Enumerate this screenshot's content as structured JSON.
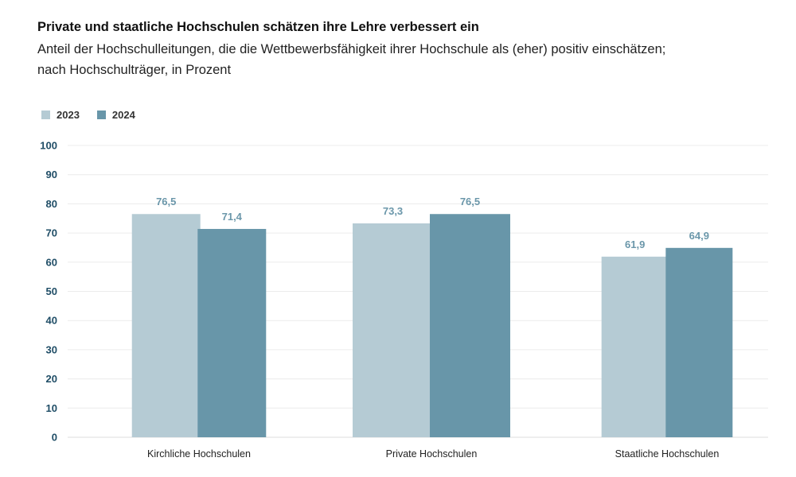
{
  "header": {
    "title": "Private und staatliche Hochschulen schätzen ihre Lehre verbessert ein",
    "subtitle_line1": "Anteil der Hochschulleitungen, die die Wettbewerbsfähigkeit ihrer Hochschule als (eher) positiv einschätzen;",
    "subtitle_line2": "nach Hochschulträger, in Prozent"
  },
  "legend": [
    {
      "label": "2023",
      "color": "#b5cbd4"
    },
    {
      "label": "2024",
      "color": "#6896a9"
    }
  ],
  "chart_data": {
    "type": "bar",
    "title": "Private und staatliche Hochschulen schätzen ihre Lehre verbessert ein",
    "xlabel": "",
    "ylabel": "",
    "ylim": [
      0,
      100
    ],
    "yticks": [
      0,
      10,
      20,
      30,
      40,
      50,
      60,
      70,
      80,
      90,
      100
    ],
    "categories": [
      "Kirchliche Hochschulen",
      "Private Hochschulen",
      "Staatliche Hochschulen"
    ],
    "series": [
      {
        "name": "2023",
        "color": "#b5cbd4",
        "values": [
          76.5,
          73.3,
          61.9
        ],
        "labels": [
          "76,5",
          "73,3",
          "61,9"
        ]
      },
      {
        "name": "2024",
        "color": "#6896a9",
        "values": [
          71.4,
          76.5,
          64.9
        ],
        "labels": [
          "71,4",
          "76,5",
          "64,9"
        ]
      }
    ],
    "grid": true,
    "legend_position": "top-left"
  }
}
